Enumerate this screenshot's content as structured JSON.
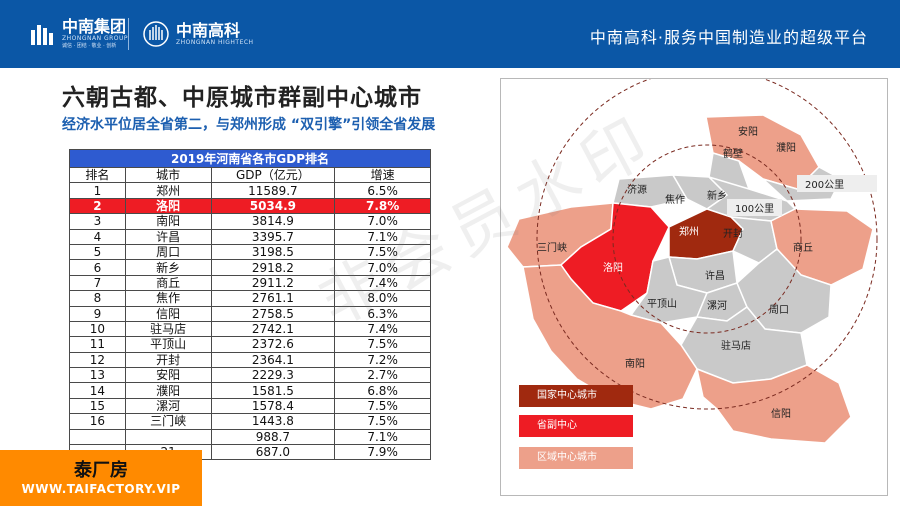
{
  "header": {
    "logo1_name": "中南集团",
    "logo1_en": "ZHONGNAN GROUP",
    "logo1_motto": "诚信 · 团结 · 敬业 · 创新",
    "logo2_name": "中南高科",
    "logo2_en": "ZHONGNAN HIGHTECH",
    "slogan": "中南高科·服务中国制造业的超级平台"
  },
  "title": "六朝古都、中原城市群副中心城市",
  "subtitle": "经济水平位居全省第二，与郑州形成 “双引擎”引领全省发展",
  "table": {
    "caption": "2019年河南省各市GDP排名",
    "headers": [
      "排名",
      "城市",
      "GDP（亿元）",
      "增速"
    ],
    "rows": [
      {
        "rank": "1",
        "city": "郑州",
        "gdp": "11589.7",
        "growth": "6.5%"
      },
      {
        "rank": "2",
        "city": "洛阳",
        "gdp": "5034.9",
        "growth": "7.8%"
      },
      {
        "rank": "3",
        "city": "南阳",
        "gdp": "3814.9",
        "growth": "7.0%"
      },
      {
        "rank": "4",
        "city": "许昌",
        "gdp": "3395.7",
        "growth": "7.1%"
      },
      {
        "rank": "5",
        "city": "周口",
        "gdp": "3198.5",
        "growth": "7.5%"
      },
      {
        "rank": "6",
        "city": "新乡",
        "gdp": "2918.2",
        "growth": "7.0%"
      },
      {
        "rank": "7",
        "city": "商丘",
        "gdp": "2911.2",
        "growth": "7.4%"
      },
      {
        "rank": "8",
        "city": "焦作",
        "gdp": "2761.1",
        "growth": "8.0%"
      },
      {
        "rank": "9",
        "city": "信阳",
        "gdp": "2758.5",
        "growth": "6.3%"
      },
      {
        "rank": "10",
        "city": "驻马店",
        "gdp": "2742.1",
        "growth": "7.4%"
      },
      {
        "rank": "11",
        "city": "平顶山",
        "gdp": "2372.6",
        "growth": "7.5%"
      },
      {
        "rank": "12",
        "city": "开封",
        "gdp": "2364.1",
        "growth": "7.2%"
      },
      {
        "rank": "13",
        "city": "安阳",
        "gdp": "2229.3",
        "growth": "2.7%"
      },
      {
        "rank": "14",
        "city": "濮阳",
        "gdp": "1581.5",
        "growth": "6.8%"
      },
      {
        "rank": "15",
        "city": "漯河",
        "gdp": "1578.4",
        "growth": "7.5%"
      },
      {
        "rank": "16",
        "city": "三门峡",
        "gdp": "1443.8",
        "growth": "7.5%"
      },
      {
        "rank": "",
        "city": "",
        "gdp": "988.7",
        "growth": "7.1%"
      },
      {
        "rank": "",
        "city": "21",
        "gdp": "687.0",
        "growth": "7.9%"
      }
    ]
  },
  "map": {
    "cities": {
      "anyang": "安阳",
      "hebi": "鹤壁",
      "puyang": "濮阳",
      "jiyuan": "济源",
      "jiaozuo": "焦作",
      "xinxiang": "新乡",
      "zhengzhou": "郑州",
      "kaifeng": "开封",
      "sanmenxia": "三门峡",
      "luoyang": "洛阳",
      "shangqiu": "商丘",
      "xuchang": "许昌",
      "pingdingshan": "平顶山",
      "luohe": "漯河",
      "zhoukou": "周口",
      "zhumadian": "驻马店",
      "nanyang": "南阳",
      "xinyang": "信阳"
    },
    "distance_200": "200公里",
    "distance_100": "100公里",
    "legend": {
      "national": "国家中心城市",
      "sub_center": "省副中心",
      "regional": "区域中心城市"
    },
    "colors": {
      "national": "#a0290f",
      "sub_center": "#ee1c24",
      "regional": "#eda08a",
      "other": "#c9c9c9"
    }
  },
  "watermark": "非会员水印",
  "footer": {
    "name": "泰厂房",
    "url": "WWW.TAIFACTORY.VIP"
  }
}
